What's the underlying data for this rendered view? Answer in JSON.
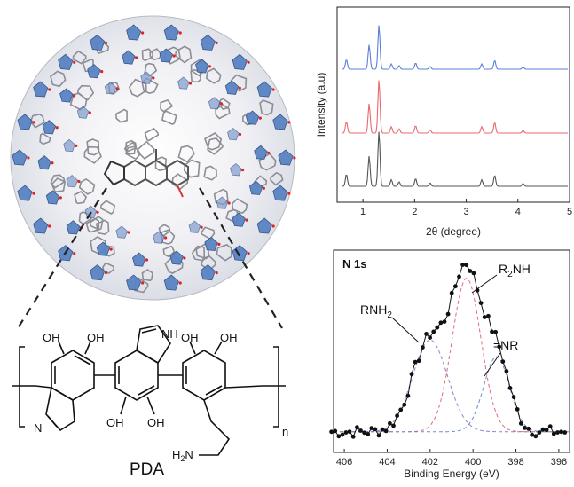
{
  "figure": {
    "labels": {
      "polymer_name": "PDA",
      "repeat_subscript": "n",
      "oh": "OH",
      "nh": "NH",
      "n_ring": "N",
      "h2n": "H2N"
    }
  },
  "chart_data": [
    {
      "type": "line",
      "title": "",
      "xlabel": "2θ (degree)",
      "ylabel": "Intensity (a.u)",
      "xlim": [
        0.5,
        5
      ],
      "xticks": [
        "1",
        "2",
        "3",
        "4",
        "5"
      ],
      "grid": false,
      "legend": "none",
      "series": [
        {
          "color": "#5b7fd8",
          "offset": 2
        },
        {
          "color": "#e8696c",
          "offset": 1
        },
        {
          "color": "#555555",
          "offset": 0
        }
      ],
      "peaks": [
        {
          "x": 0.68,
          "h": 0.22
        },
        {
          "x": 1.12,
          "h": 0.55
        },
        {
          "x": 1.31,
          "h": 1.0
        },
        {
          "x": 1.55,
          "h": 0.12
        },
        {
          "x": 1.7,
          "h": 0.08
        },
        {
          "x": 2.02,
          "h": 0.14
        },
        {
          "x": 2.3,
          "h": 0.06
        },
        {
          "x": 3.3,
          "h": 0.12
        },
        {
          "x": 3.55,
          "h": 0.2
        },
        {
          "x": 4.1,
          "h": 0.05
        }
      ]
    },
    {
      "type": "scatter",
      "title": "N 1s",
      "xlabel": "Binding Energy (eV)",
      "ylabel": "",
      "xlim": [
        406.5,
        395.5
      ],
      "xticks": [
        "406",
        "404",
        "402",
        "400",
        "398",
        "396"
      ],
      "grid": false,
      "annotations": [
        "RNH2",
        "R2NH",
        "=NR"
      ],
      "components": [
        {
          "name": "RNH2",
          "center": 402.0,
          "width": 1.15,
          "height": 0.55,
          "color": "#8888cc"
        },
        {
          "name": "R2NH",
          "center": 400.3,
          "width": 0.95,
          "height": 0.92,
          "color": "#e06a78"
        },
        {
          "name": "=NR",
          "center": 398.9,
          "width": 0.85,
          "height": 0.45,
          "color": "#6e8ad0"
        }
      ],
      "baseline": 0.06
    }
  ]
}
